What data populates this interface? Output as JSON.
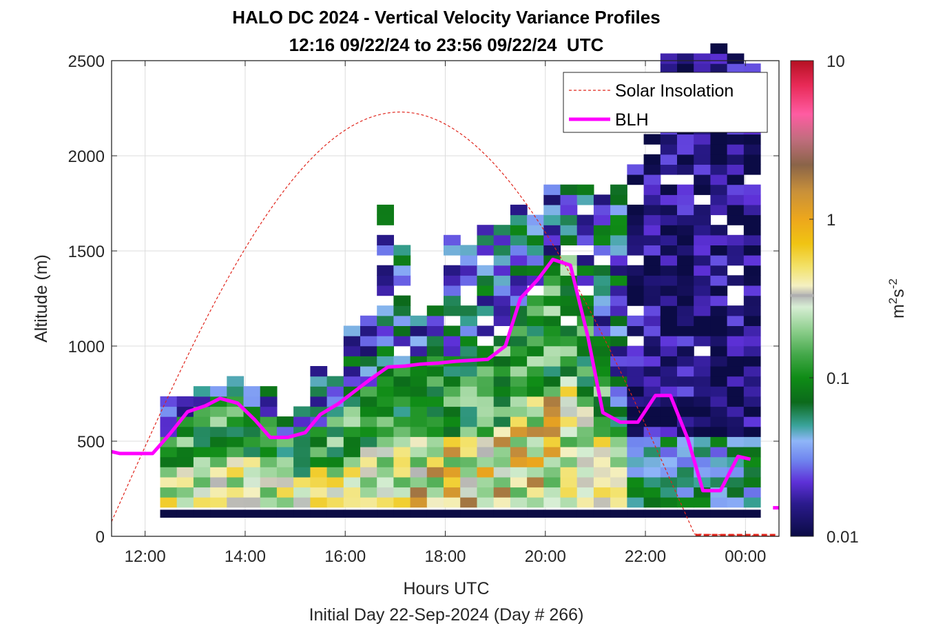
{
  "chart_data": {
    "type": "heatmap",
    "title": "HALO DC 2024 - Vertical Velocity Variance Profiles",
    "subtitle": "12:16 09/22/24 to 23:56 09/22/24  UTC",
    "xlabel": "Hours UTC",
    "xlabel2": "Initial Day 22-Sep-2024 (Day # 266)",
    "ylabel": "Altitude (m)",
    "xlim_hours": [
      11.33,
      24.67
    ],
    "ylim": [
      0,
      2500
    ],
    "x_ticks": [
      {
        "hour": 12,
        "label": "12:00"
      },
      {
        "hour": 14,
        "label": "14:00"
      },
      {
        "hour": 16,
        "label": "16:00"
      },
      {
        "hour": 18,
        "label": "18:00"
      },
      {
        "hour": 20,
        "label": "20:00"
      },
      {
        "hour": 22,
        "label": "22:00"
      },
      {
        "hour": 24,
        "label": "00:00"
      }
    ],
    "y_ticks": [
      {
        "value": 0,
        "label": "0"
      },
      {
        "value": 500,
        "label": "500"
      },
      {
        "value": 1000,
        "label": "1000"
      },
      {
        "value": 1500,
        "label": "1500"
      },
      {
        "value": 2000,
        "label": "2000"
      },
      {
        "value": 2500,
        "label": "2500"
      }
    ],
    "grid": true,
    "legend_position": "top-right",
    "legend": [
      {
        "label": "Solar Insolation",
        "color": "#e0241b",
        "style": "dashed"
      },
      {
        "label": "BLH",
        "color": "#ff00ff",
        "style": "solid-thick"
      }
    ],
    "colorbar": {
      "scale": "log",
      "range": [
        0.01,
        10
      ],
      "label": "m²s⁻²",
      "ticks": [
        {
          "value": 0.01,
          "label": "0.01"
        },
        {
          "value": 0.1,
          "label": "0.1"
        },
        {
          "value": 1,
          "label": "1"
        },
        {
          "value": 10,
          "label": "10"
        }
      ],
      "colormap": [
        {
          "value": 0.01,
          "color": "#0b0b45"
        },
        {
          "value": 0.016,
          "color": "#2a1a8c"
        },
        {
          "value": 0.022,
          "color": "#5e31d8"
        },
        {
          "value": 0.03,
          "color": "#6f83ee"
        },
        {
          "value": 0.04,
          "color": "#8fb6f8"
        },
        {
          "value": 0.05,
          "color": "#3aa39a"
        },
        {
          "value": 0.07,
          "color": "#0c6a1b"
        },
        {
          "value": 0.1,
          "color": "#0f8c16"
        },
        {
          "value": 0.14,
          "color": "#44a84a"
        },
        {
          "value": 0.2,
          "color": "#8fcf8e"
        },
        {
          "value": 0.28,
          "color": "#d7eed4"
        },
        {
          "value": 0.33,
          "color": "#b4b4b4"
        },
        {
          "value": 0.38,
          "color": "#f4f0c2"
        },
        {
          "value": 0.5,
          "color": "#f3e26a"
        },
        {
          "value": 0.7,
          "color": "#f0c413"
        },
        {
          "value": 1.0,
          "color": "#eda71c"
        },
        {
          "value": 1.5,
          "color": "#c8903a"
        },
        {
          "value": 2.2,
          "color": "#8a6448"
        },
        {
          "value": 3.2,
          "color": "#c16d7e"
        },
        {
          "value": 4.6,
          "color": "#ff5ca2"
        },
        {
          "value": 7.0,
          "color": "#e82a57"
        },
        {
          "value": 10,
          "color": "#b51122"
        }
      ],
      "marker_value": 0.33
    },
    "blh_series": {
      "name": "BLH",
      "x_hours": [
        11.33,
        11.5,
        11.8,
        12.15,
        12.5,
        12.85,
        13.2,
        13.5,
        13.85,
        14.2,
        14.5,
        14.85,
        15.2,
        15.5,
        15.85,
        16.2,
        16.5,
        16.85,
        17.2,
        17.5,
        17.85,
        18.2,
        18.5,
        18.85,
        19.2,
        19.5,
        19.85,
        20.15,
        20.5,
        20.85,
        21.15,
        21.5,
        21.85,
        22.2,
        22.5,
        22.85,
        23.15,
        23.5,
        23.85,
        24.1
      ],
      "y_m": [
        445,
        435,
        435,
        435,
        540,
        655,
        685,
        725,
        700,
        610,
        520,
        520,
        545,
        640,
        695,
        765,
        825,
        890,
        895,
        905,
        910,
        920,
        925,
        930,
        1000,
        1250,
        1350,
        1455,
        1425,
        1050,
        650,
        600,
        600,
        740,
        740,
        510,
        240,
        240,
        420,
        405
      ]
    },
    "blh_tail": {
      "x_hours": [
        24.55,
        24.67
      ],
      "y_m": [
        150,
        150
      ]
    },
    "solar_insolation_series": {
      "name": "Solar Insolation",
      "peak_hour": 17.1,
      "peak_m": 2230,
      "zero_hour": 23.0
    },
    "heatmap_bins": {
      "x_start_hour": 12.3,
      "x_step_hour": 0.3333,
      "columns": 36,
      "y_step_m": 53,
      "first_row_m": 100,
      "value_scale": "log10(variance)"
    }
  }
}
